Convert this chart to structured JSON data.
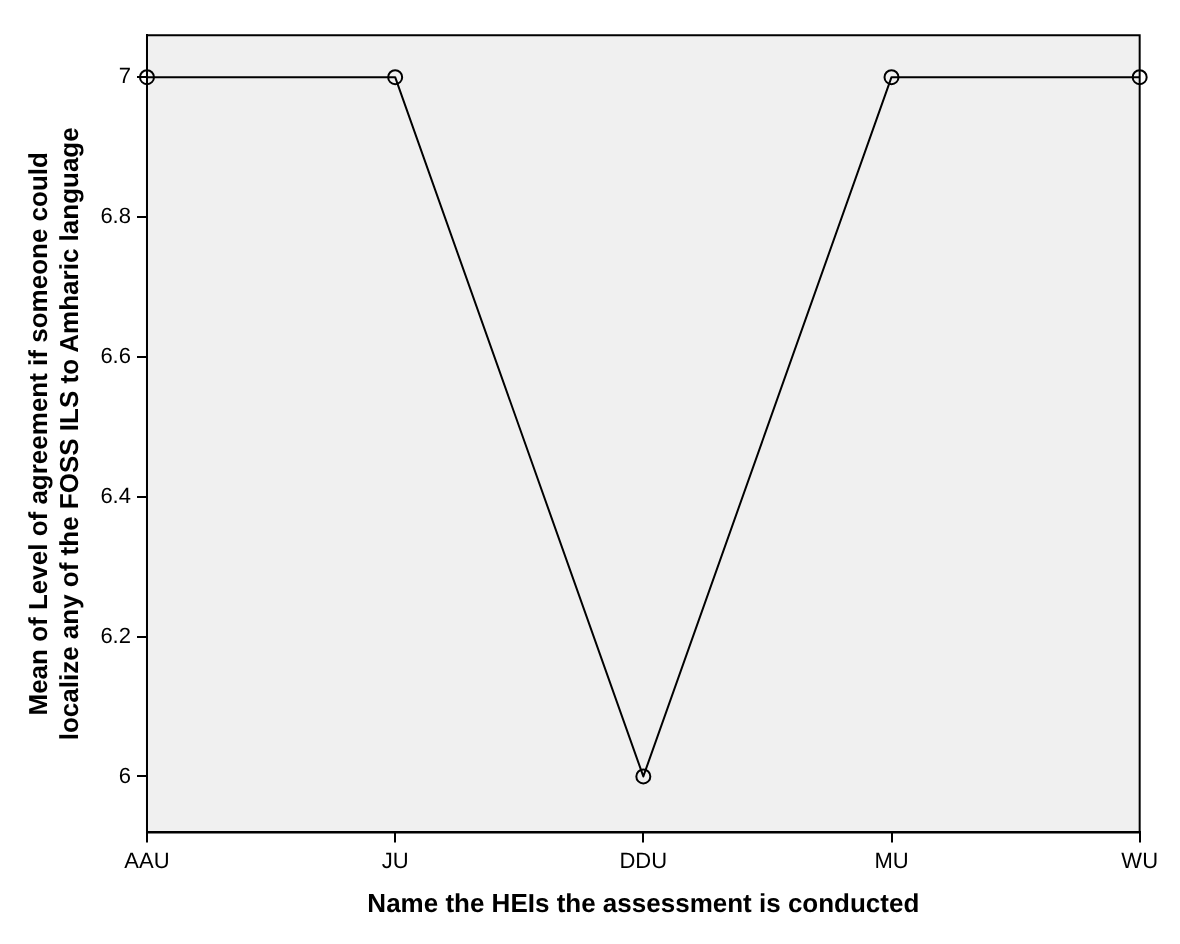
{
  "chart_data": {
    "type": "line",
    "xlabel": "Name the HEIs the assessment is conducted",
    "ylabel": "Mean of Level of agreement if someone could localize any of the FOSS ILS to Amharic language",
    "categories": [
      "AAU",
      "JU",
      "DDU",
      "MU",
      "WU"
    ],
    "series": [
      {
        "color": "#000000",
        "values": [
          7,
          7,
          6,
          7,
          7
        ]
      }
    ],
    "ylim": [
      5.92,
      7.06
    ],
    "yticks": [
      6,
      6.2,
      6.4,
      6.6,
      6.8,
      7
    ],
    "grid": false,
    "legend": false,
    "marker": "circle",
    "line_style": "solid"
  }
}
